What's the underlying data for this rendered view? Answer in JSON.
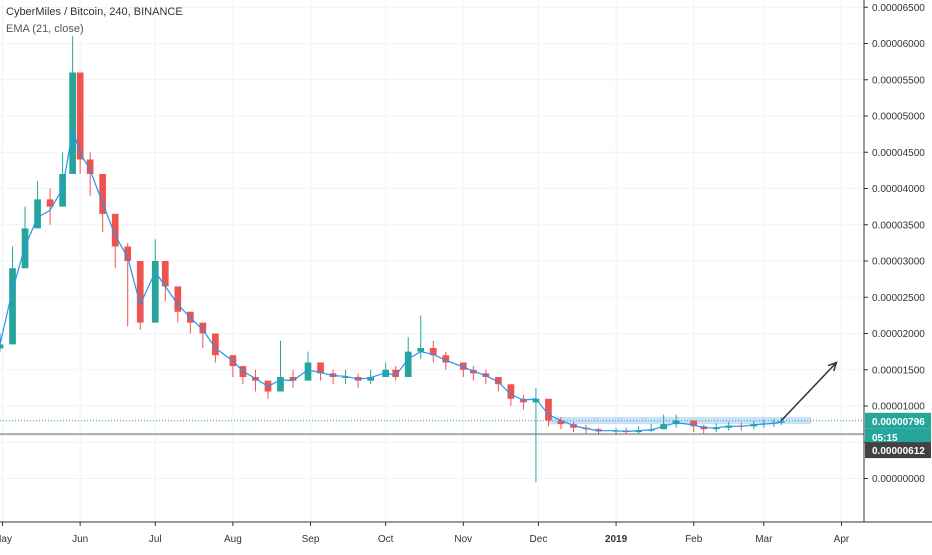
{
  "header": {
    "title": "CyberMiles / Bitcoin, 240, BINANCE",
    "indicator": "EMA (21, close)"
  },
  "price_scale": {
    "ticks": [
      "0.00006500",
      "0.00006000",
      "0.00005500",
      "0.00005000",
      "0.00004500",
      "0.00004000",
      "0.00003500",
      "0.00003000",
      "0.00002500",
      "0.00002000",
      "0.00001500",
      "0.00001000",
      "0.00000500",
      "0.00000000"
    ],
    "last_price_label": "0.00000796",
    "countdown_label": "05:15",
    "support_label": "0.00000612"
  },
  "time_scale": {
    "ticks": [
      "May",
      "Jun",
      "Jul",
      "Aug",
      "Sep",
      "Oct",
      "Nov",
      "Dec",
      "2019",
      "Feb",
      "Mar",
      "Apr"
    ]
  },
  "colors": {
    "up": "#26a69a",
    "down": "#ef5350",
    "ema": "#2196f3",
    "last_price": "#26a69a",
    "support_line": "#aaaaaa",
    "support_label_bg": "#424242",
    "resistance_box": "#b3d4f5",
    "grid": "#f0f3fa",
    "axis": "#333333"
  },
  "chart_data": {
    "type": "candlestick",
    "symbol": "CyberMiles / Bitcoin",
    "interval": "240",
    "exchange": "BINANCE",
    "ylim": [
      -6e-06,
      6.6e-05
    ],
    "x": [
      "2018-04-30",
      "2018-05-05",
      "2018-05-10",
      "2018-05-15",
      "2018-05-20",
      "2018-05-25",
      "2018-05-29",
      "2018-06-01",
      "2018-06-05",
      "2018-06-10",
      "2018-06-15",
      "2018-06-20",
      "2018-06-25",
      "2018-07-01",
      "2018-07-05",
      "2018-07-10",
      "2018-07-15",
      "2018-07-20",
      "2018-07-25",
      "2018-08-01",
      "2018-08-05",
      "2018-08-10",
      "2018-08-15",
      "2018-08-20",
      "2018-08-25",
      "2018-08-31",
      "2018-09-05",
      "2018-09-10",
      "2018-09-15",
      "2018-09-20",
      "2018-09-25",
      "2018-10-01",
      "2018-10-05",
      "2018-10-10",
      "2018-10-15",
      "2018-10-20",
      "2018-10-25",
      "2018-11-01",
      "2018-11-05",
      "2018-11-10",
      "2018-11-15",
      "2018-11-20",
      "2018-11-25",
      "2018-11-30",
      "2018-12-05",
      "2018-12-10",
      "2018-12-15",
      "2018-12-20",
      "2018-12-25",
      "2019-01-01",
      "2019-01-05",
      "2019-01-10",
      "2019-01-15",
      "2019-01-20",
      "2019-01-25",
      "2019-02-01",
      "2019-02-05",
      "2019-02-10",
      "2019-02-15",
      "2019-02-20",
      "2019-02-25",
      "2019-03-01",
      "2019-03-05",
      "2019-03-08"
    ],
    "close": [
      1.85e-05,
      2.9e-05,
      3.45e-05,
      3.85e-05,
      3.75e-05,
      4.2e-05,
      5.6e-05,
      4.4e-05,
      4.2e-05,
      3.65e-05,
      3.2e-05,
      3e-05,
      2.15e-05,
      3e-05,
      2.65e-05,
      2.3e-05,
      2.15e-05,
      2e-05,
      1.7e-05,
      1.55e-05,
      1.4e-05,
      1.35e-05,
      1.2e-05,
      1.4e-05,
      1.35e-05,
      1.6e-05,
      1.45e-05,
      1.4e-05,
      1.4e-05,
      1.35e-05,
      1.4e-05,
      1.5e-05,
      1.4e-05,
      1.75e-05,
      1.8e-05,
      1.7e-05,
      1.6e-05,
      1.5e-05,
      1.45e-05,
      1.4e-05,
      1.3e-05,
      1.1e-05,
      1.05e-05,
      1.1e-05,
      8e-06,
      7.5e-06,
      7e-06,
      6.8e-06,
      6.5e-06,
      6.6e-06,
      6.4e-06,
      6.6e-06,
      6.8e-06,
      7.5e-06,
      8e-06,
      7.2e-06,
      6.8e-06,
      7e-06,
      7.3e-06,
      7.2e-06,
      7.5e-06,
      7.6e-06,
      7.7e-06,
      7.9e-06
    ],
    "high": [
      2e-05,
      3.2e-05,
      3.75e-05,
      4.1e-05,
      4e-05,
      4.5e-05,
      6.1e-05,
      4.8e-05,
      4.5e-05,
      3.95e-05,
      3.45e-05,
      3.25e-05,
      2.45e-05,
      3.3e-05,
      2.85e-05,
      2.5e-05,
      2.3e-05,
      2.15e-05,
      1.85e-05,
      1.7e-05,
      1.55e-05,
      1.5e-05,
      1.35e-05,
      1.9e-05,
      1.5e-05,
      1.75e-05,
      1.6e-05,
      1.5e-05,
      1.5e-05,
      1.45e-05,
      1.5e-05,
      1.6e-05,
      1.55e-05,
      1.95e-05,
      2.25e-05,
      1.9e-05,
      1.75e-05,
      1.6e-05,
      1.55e-05,
      1.5e-05,
      1.4e-05,
      1.25e-05,
      1.15e-05,
      1.25e-05,
      9.5e-06,
      8.5e-06,
      7.8e-06,
      7.4e-06,
      7e-06,
      7e-06,
      7e-06,
      7.2e-06,
      7.5e-06,
      8.8e-06,
      8.8e-06,
      8e-06,
      7.4e-06,
      7.6e-06,
      7.8e-06,
      7.7e-06,
      8e-06,
      8.1e-06,
      8.2e-06,
      8.4e-06
    ],
    "low": [
      1.75e-05,
      2.7e-05,
      3e-05,
      3.6e-05,
      3.5e-05,
      3.9e-05,
      4.2e-05,
      4.2e-05,
      3.9e-05,
      3.4e-05,
      2.9e-05,
      2.1e-05,
      2.05e-05,
      2.6e-05,
      2.45e-05,
      2.15e-05,
      2e-05,
      1.8e-05,
      1.6e-05,
      1.4e-05,
      1.3e-05,
      1.2e-05,
      1.1e-05,
      1.25e-05,
      1.25e-05,
      1.4e-05,
      1.35e-05,
      1.3e-05,
      1.3e-05,
      1.25e-05,
      1.3e-05,
      1.4e-05,
      1.35e-05,
      1.4e-05,
      1.65e-05,
      1.6e-05,
      1.5e-05,
      1.4e-05,
      1.35e-05,
      1.3e-05,
      1.2e-05,
      1e-05,
      9.5e-06,
      -5e-07,
      7.2e-06,
      6.8e-06,
      6.4e-06,
      6.2e-06,
      6e-06,
      6e-06,
      6e-06,
      6.2e-06,
      6.4e-06,
      6.8e-06,
      7e-06,
      6.4e-06,
      6.2e-06,
      6.4e-06,
      6.6e-06,
      6.6e-06,
      6.8e-06,
      7e-06,
      7.1e-06,
      7.4e-06
    ],
    "ema": [
      1.85e-05,
      2.6e-05,
      3.2e-05,
      3.6e-05,
      3.7e-05,
      4e-05,
      4.8e-05,
      4.5e-05,
      4.25e-05,
      3.8e-05,
      3.35e-05,
      3.05e-05,
      2.4e-05,
      2.85e-05,
      2.65e-05,
      2.4e-05,
      2.22e-05,
      2.05e-05,
      1.8e-05,
      1.62e-05,
      1.48e-05,
      1.38e-05,
      1.27e-05,
      1.36e-05,
      1.35e-05,
      1.5e-05,
      1.46e-05,
      1.42e-05,
      1.41e-05,
      1.37e-05,
      1.39e-05,
      1.46e-05,
      1.42e-05,
      1.65e-05,
      1.75e-05,
      1.71e-05,
      1.63e-05,
      1.54e-05,
      1.48e-05,
      1.42e-05,
      1.33e-05,
      1.16e-05,
      1.08e-05,
      1.1e-05,
      8.8e-06,
      8e-06,
      7.3e-06,
      6.9e-06,
      6.6e-06,
      6.6e-06,
      6.5e-06,
      6.6e-06,
      6.7e-06,
      7.2e-06,
      7.7e-06,
      7.4e-06,
      7e-06,
      7e-06,
      7.2e-06,
      7.2e-06,
      7.4e-06,
      7.5e-06,
      7.6e-06,
      7.8e-06
    ],
    "last_price": 7.96e-06,
    "support_level": 6.12e-06,
    "resistance_box": {
      "start": "2018-12-05",
      "end": "2019-03-20",
      "low": 7.5e-06,
      "high": 8.5e-06
    },
    "projection_arrow": {
      "from": {
        "x": "2019-03-08",
        "y": 8e-06
      },
      "to": {
        "x": "2019-03-30",
        "y": 1.6e-05
      }
    }
  }
}
